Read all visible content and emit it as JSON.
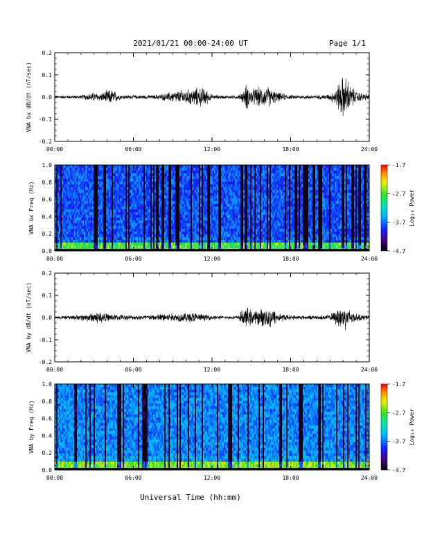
{
  "header": {
    "title": "2021/01/21  00:00-24:00 UT",
    "page": "Page 1/1"
  },
  "xlabel": "Universal Time (hh:mm)",
  "chart_data": [
    {
      "type": "line",
      "ylabel": "VNA bx dB/dt (nT/sec)",
      "x_ticks": [
        "00:00",
        "06:00",
        "12:00",
        "18:00",
        "24:00"
      ],
      "xlim_hours": [
        0,
        24
      ],
      "ylim": [
        -0.2,
        0.2
      ],
      "y_ticks": [
        "0.2",
        "0.1",
        "0.0",
        "-0.1",
        "-0.2"
      ],
      "series": [
        {
          "x": [
            0,
            1,
            2,
            2.9,
            3.5,
            4.2,
            4.5,
            5,
            6,
            7.5,
            8.5,
            9,
            9.5,
            10,
            10.5,
            11,
            11.4,
            12,
            13,
            14,
            14.5,
            14.6,
            15,
            15.4,
            16,
            16.3,
            16.6,
            17,
            18,
            19,
            20,
            21,
            21.5,
            21.8,
            22,
            22.3,
            22.6,
            23,
            23.5,
            24
          ],
          "amplitude": [
            0.008,
            0.008,
            0.01,
            0.025,
            0.02,
            0.04,
            0.035,
            0.012,
            0.01,
            0.01,
            0.02,
            0.03,
            0.035,
            0.04,
            0.045,
            0.05,
            0.05,
            0.012,
            0.008,
            0.01,
            0.04,
            0.07,
            0.04,
            0.05,
            0.05,
            0.055,
            0.04,
            0.025,
            0.01,
            0.01,
            0.01,
            0.015,
            0.05,
            0.09,
            0.11,
            0.1,
            0.06,
            0.03,
            0.02,
            0.015
          ]
        }
      ]
    },
    {
      "type": "heatmap",
      "ylabel": "VNA bx Freq (Hz)",
      "x_ticks": [
        "00:00",
        "06:00",
        "12:00",
        "18:00",
        "24:00"
      ],
      "xlim_hours": [
        0,
        24
      ],
      "ylim": [
        0.0,
        1.0
      ],
      "y_ticks": [
        "1.0",
        "0.8",
        "0.6",
        "0.4",
        "0.2",
        "0.0"
      ],
      "colorbar": {
        "label": "Log₁₀ Power",
        "ticks": [
          "-1.7",
          "-2.7",
          "-3.7",
          "-4.7"
        ],
        "range": [
          -4.7,
          -1.7
        ]
      }
    },
    {
      "type": "line",
      "ylabel": "VNA by dB/dt (nT/sec)",
      "x_ticks": [
        "00:00",
        "06:00",
        "12:00",
        "18:00",
        "24:00"
      ],
      "xlim_hours": [
        0,
        24
      ],
      "ylim": [
        -0.2,
        0.2
      ],
      "y_ticks": [
        "0.2",
        "0.1",
        "0.0",
        "-0.1",
        "-0.2"
      ],
      "series": [
        {
          "x": [
            0,
            1,
            2,
            2.9,
            3.3,
            4,
            5,
            6,
            7.5,
            8.5,
            9,
            10,
            10.5,
            11,
            12,
            13,
            14,
            14.3,
            14.7,
            15,
            15.4,
            16,
            16.4,
            16.8,
            17,
            18,
            19,
            20,
            21,
            21.5,
            21.9,
            22.2,
            22.6,
            23,
            24
          ],
          "amplitude": [
            0.008,
            0.01,
            0.015,
            0.025,
            0.035,
            0.02,
            0.015,
            0.012,
            0.015,
            0.025,
            0.02,
            0.025,
            0.03,
            0.02,
            0.012,
            0.008,
            0.01,
            0.04,
            0.05,
            0.04,
            0.035,
            0.05,
            0.055,
            0.04,
            0.025,
            0.012,
            0.01,
            0.01,
            0.015,
            0.04,
            0.07,
            0.06,
            0.04,
            0.02,
            0.012
          ]
        }
      ]
    },
    {
      "type": "heatmap",
      "ylabel": "VNA by Freq (Hz)",
      "x_ticks": [
        "00:00",
        "06:00",
        "12:00",
        "18:00",
        "24:00"
      ],
      "xlim_hours": [
        0,
        24
      ],
      "ylim": [
        0.0,
        1.0
      ],
      "y_ticks": [
        "1.0",
        "0.8",
        "0.6",
        "0.4",
        "0.2",
        "0.0"
      ],
      "colorbar": {
        "label": "Log₁₀ Power",
        "ticks": [
          "-1.7",
          "-2.7",
          "-3.7",
          "-4.7"
        ],
        "range": [
          -4.7,
          -1.7
        ]
      }
    }
  ]
}
